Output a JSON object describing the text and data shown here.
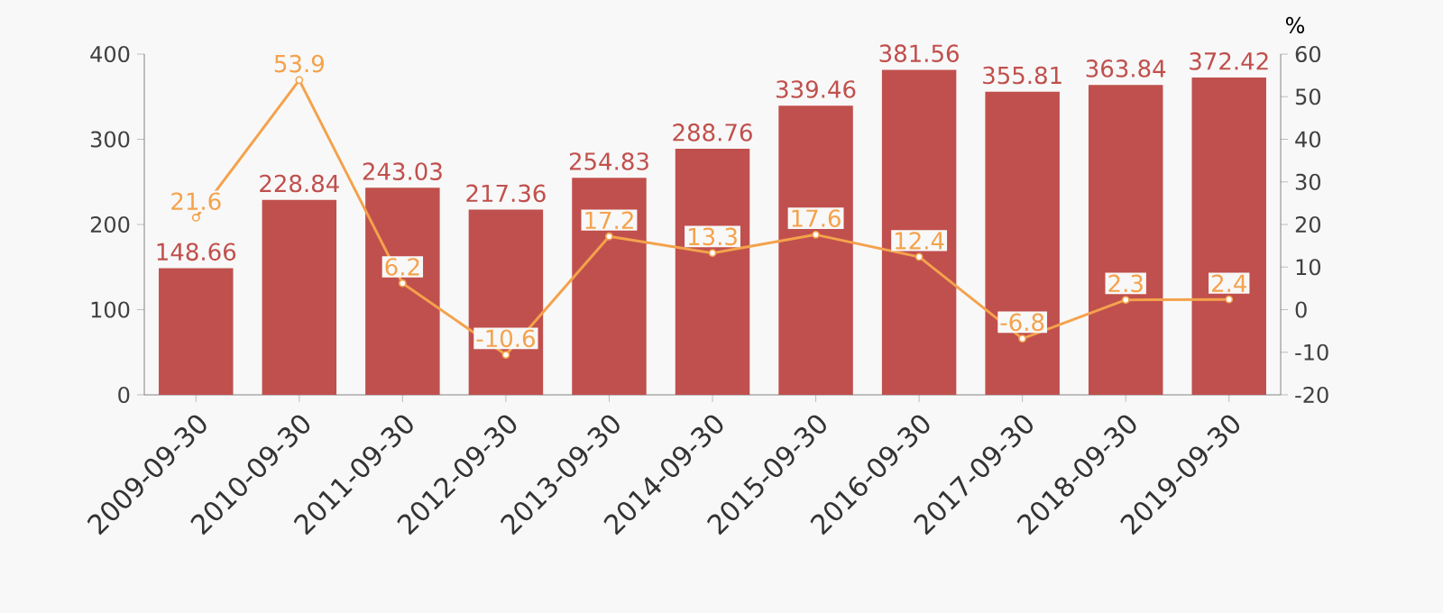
{
  "chart_data": {
    "type": "bar",
    "categories": [
      "2009-09-30",
      "2010-09-30",
      "2011-09-30",
      "2012-09-30",
      "2013-09-30",
      "2014-09-30",
      "2015-09-30",
      "2016-09-30",
      "2017-09-30",
      "2018-09-30",
      "2019-09-30"
    ],
    "series": [
      {
        "color": "#c0504d",
        "values": [
          148.66,
          228.84,
          243.03,
          217.36,
          254.83,
          288.76,
          339.46,
          381.56,
          355.81,
          363.84,
          372.42
        ]
      },
      {
        "type": "line",
        "axis": "y2",
        "color": "#f4a24c",
        "values": [
          21.6,
          53.9,
          6.2,
          -10.6,
          17.2,
          13.3,
          17.6,
          12.4,
          -6.8,
          2.3,
          2.4
        ]
      }
    ],
    "ylim": [
      0,
      400
    ],
    "yticks": [
      0,
      100,
      200,
      300,
      400
    ],
    "y2lim": [
      -20,
      60
    ],
    "y2ticks": [
      -20,
      -10,
      0,
      10,
      20,
      30,
      40,
      50,
      60
    ],
    "y2label": "%",
    "data_labels": true,
    "marker": "circle"
  }
}
